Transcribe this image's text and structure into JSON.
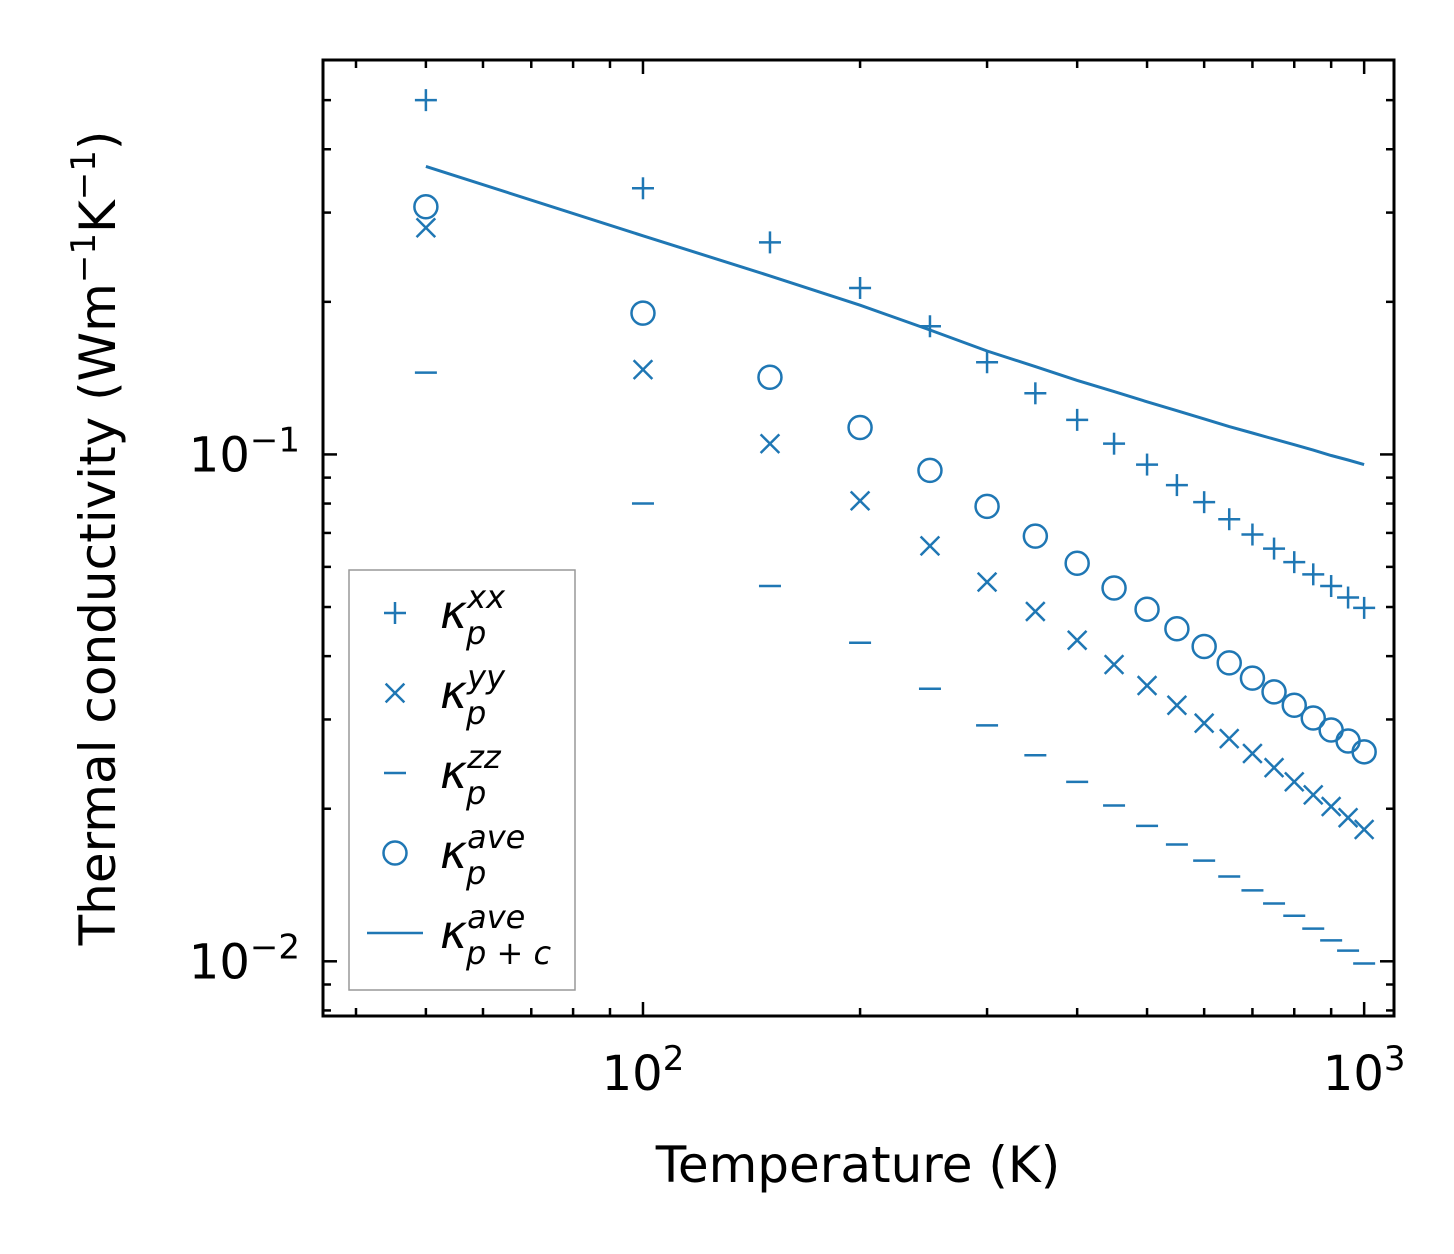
{
  "chart_data": {
    "type": "scatter",
    "xscale": "log",
    "yscale": "log",
    "xlabel": "Temperature (K)",
    "ylabel": "Thermal conductivity (Wm",
    "ylabel_sup1": "−1",
    "ylabel_mid": "K",
    "ylabel_sup2": "−1",
    "ylabel_end": ")",
    "xlim": [
      36,
      1100
    ],
    "ylim": [
      0.0078,
      0.6
    ],
    "xticks": [
      {
        "base": "10",
        "exp": "2",
        "value": 100
      },
      {
        "base": "10",
        "exp": "3",
        "value": 1000
      }
    ],
    "yticks": [
      {
        "base": "10",
        "exp": "−1",
        "value": 0.1
      },
      {
        "base": "10",
        "exp": "−2",
        "value": 0.01
      }
    ],
    "color": "#1f77b4",
    "x": [
      50,
      100,
      150,
      200,
      250,
      300,
      350,
      400,
      450,
      500,
      550,
      600,
      650,
      700,
      750,
      800,
      850,
      900,
      950,
      1000
    ],
    "series": [
      {
        "name": "kxx",
        "marker": "plus",
        "values": [
          0.5,
          0.335,
          0.262,
          0.213,
          0.179,
          0.152,
          0.132,
          0.117,
          0.105,
          0.0955,
          0.087,
          0.0805,
          0.0745,
          0.0695,
          0.0652,
          0.0613,
          0.058,
          0.055,
          0.0522,
          0.0498
        ]
      },
      {
        "name": "kyy",
        "marker": "x",
        "values": [
          0.28,
          0.147,
          0.105,
          0.081,
          0.066,
          0.056,
          0.049,
          0.043,
          0.0385,
          0.035,
          0.032,
          0.0295,
          0.0275,
          0.0257,
          0.0241,
          0.0226,
          0.0213,
          0.0202,
          0.0192,
          0.0182
        ]
      },
      {
        "name": "kzz",
        "marker": "hline",
        "values": [
          0.145,
          0.08,
          0.055,
          0.0425,
          0.0345,
          0.0292,
          0.0255,
          0.0226,
          0.0203,
          0.0185,
          0.017,
          0.0158,
          0.0147,
          0.0138,
          0.013,
          0.0123,
          0.0116,
          0.011,
          0.0105,
          0.0099
        ]
      },
      {
        "name": "kave",
        "marker": "circle",
        "values": [
          0.308,
          0.19,
          0.142,
          0.113,
          0.093,
          0.079,
          0.069,
          0.061,
          0.0545,
          0.0495,
          0.0453,
          0.0418,
          0.0388,
          0.0362,
          0.034,
          0.032,
          0.0302,
          0.0286,
          0.0272,
          0.0259
        ]
      },
      {
        "name": "kave_pc",
        "marker": "line",
        "values": [
          0.37,
          0.27,
          0.225,
          0.197,
          0.176,
          0.16,
          0.149,
          0.14,
          0.133,
          0.127,
          0.122,
          0.1175,
          0.1135,
          0.1102,
          0.1072,
          0.1045,
          0.102,
          0.0995,
          0.0975,
          0.0955
        ]
      }
    ],
    "legend": {
      "position": "lower-left",
      "entries": [
        {
          "symbol": "κ",
          "sub": "p",
          "sup": "xx",
          "marker": "plus"
        },
        {
          "symbol": "κ",
          "sub": "p",
          "sup": "yy",
          "marker": "x"
        },
        {
          "symbol": "κ",
          "sub": "p",
          "sup": "zz",
          "marker": "hline"
        },
        {
          "symbol": "κ",
          "sub": "p",
          "sup": "ave",
          "marker": "circle"
        },
        {
          "symbol": "κ",
          "sub": "p + c",
          "sup": "ave",
          "marker": "line"
        }
      ]
    }
  }
}
